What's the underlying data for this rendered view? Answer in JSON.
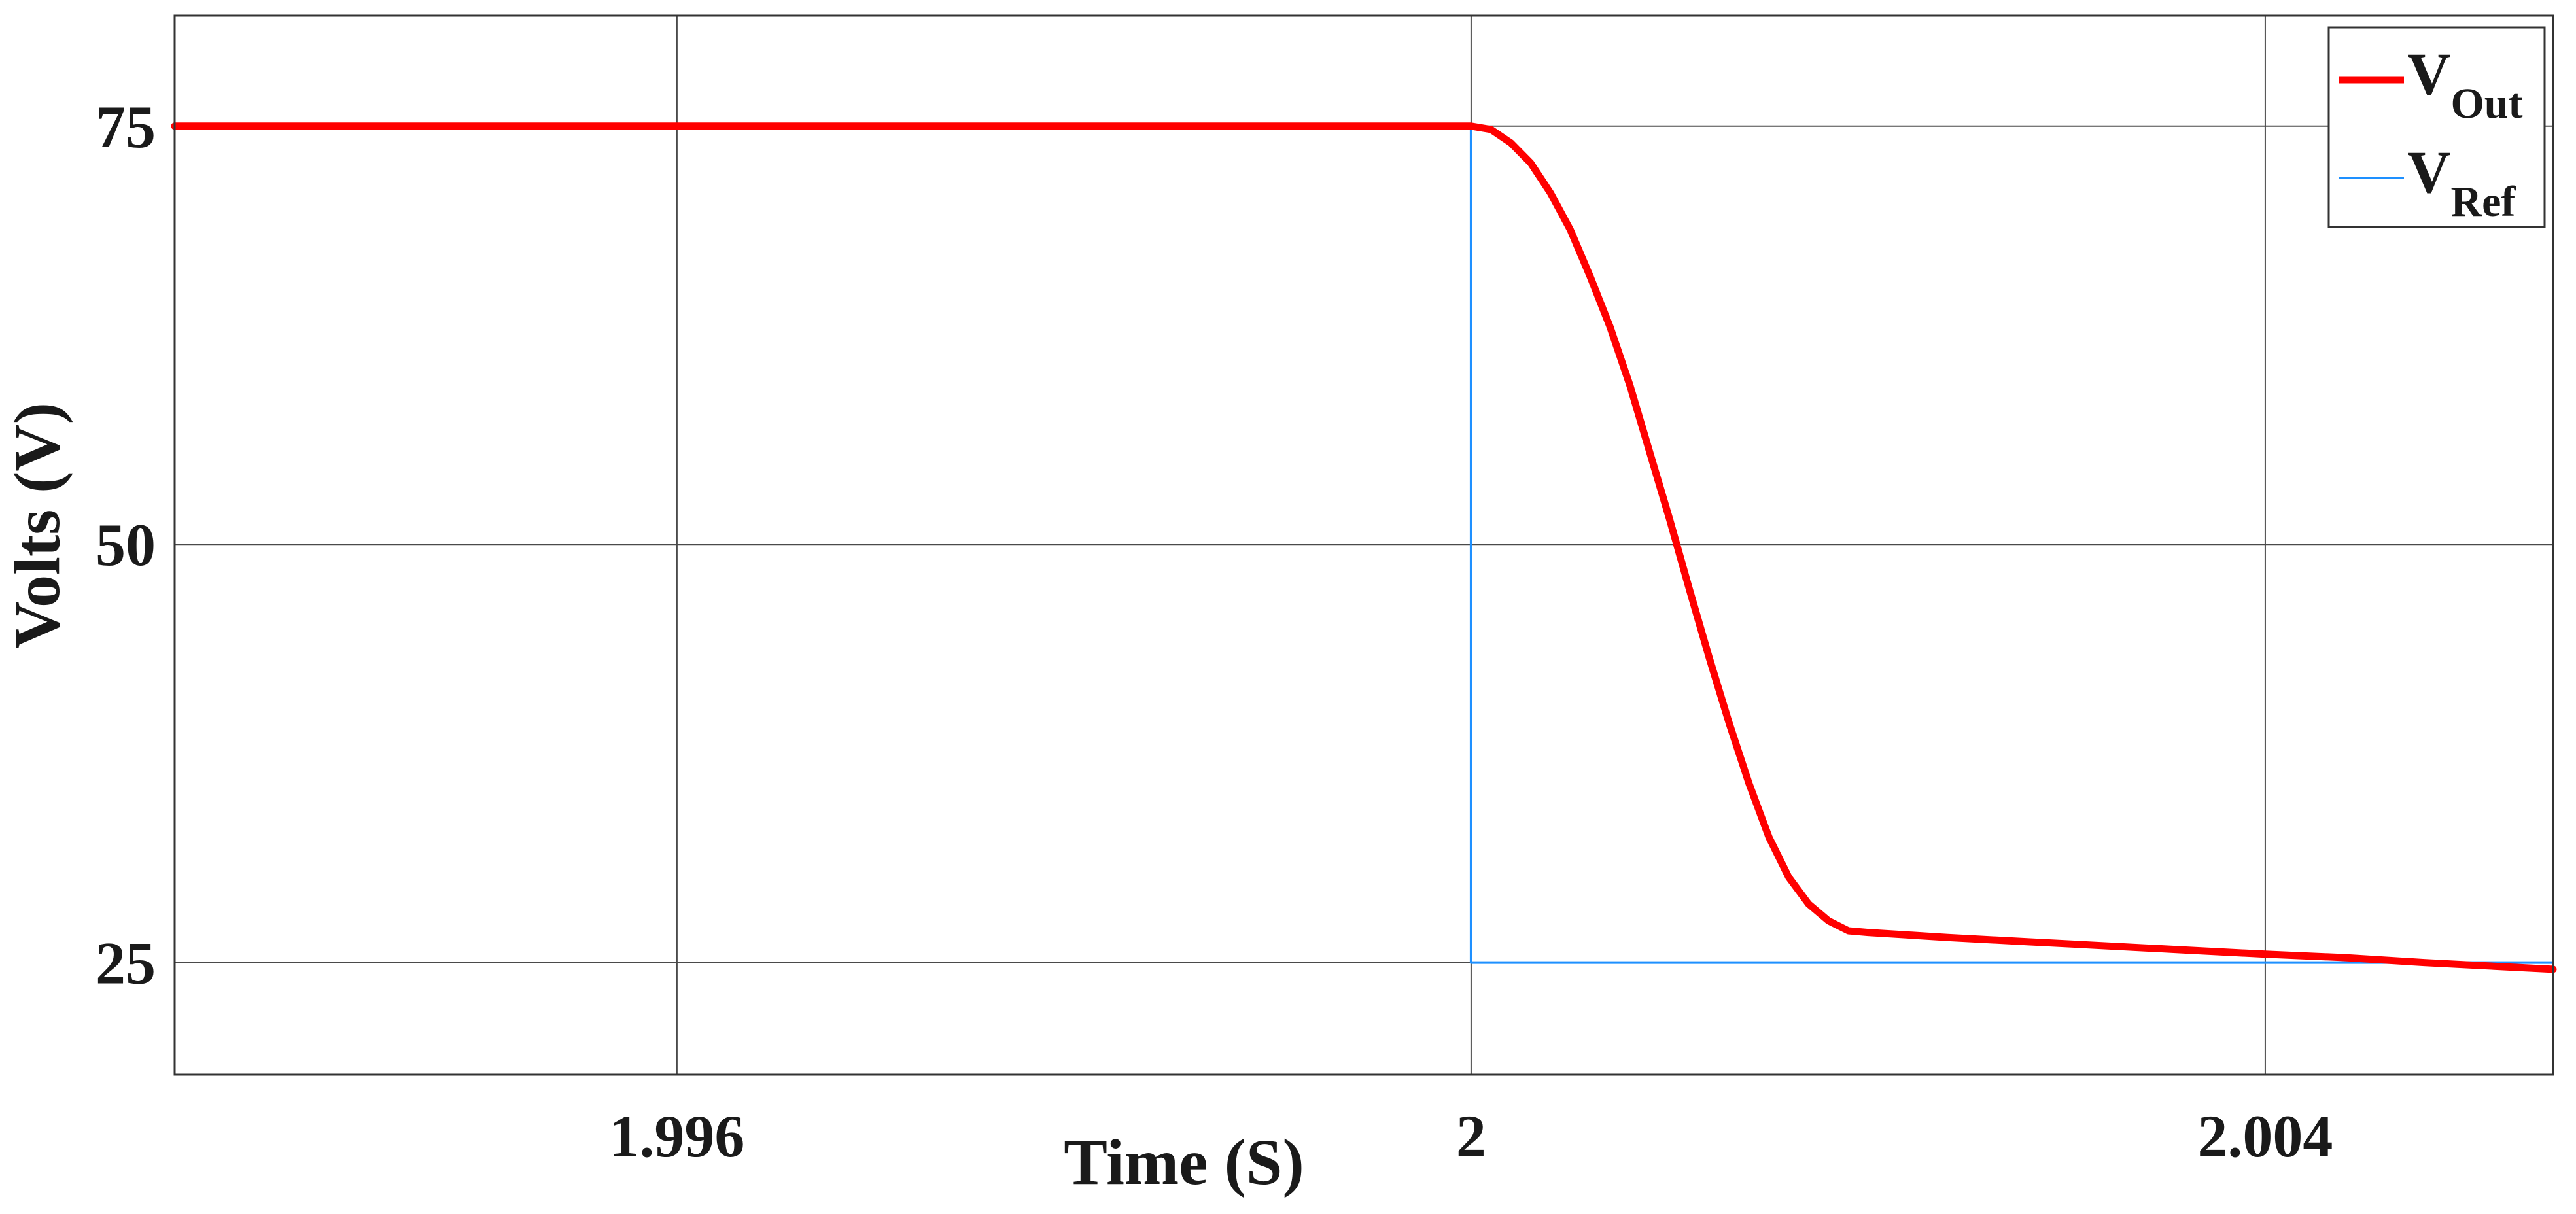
{
  "chart_data": {
    "type": "line",
    "title": "",
    "xlabel": "Time (S)",
    "ylabel": "Volts (V)",
    "xlim": [
      1.99347,
      2.00545
    ],
    "ylim": [
      18.3,
      81.6
    ],
    "xticks": [
      1.996,
      2,
      2.004
    ],
    "xtick_labels": [
      "1.996",
      "2",
      "2.004"
    ],
    "yticks": [
      25,
      50,
      75
    ],
    "ytick_labels": [
      "25",
      "50",
      "75"
    ],
    "grid": true,
    "legend_position": "top-right",
    "series": [
      {
        "name": "V_Out",
        "legend_main": "V",
        "legend_sub": "Out",
        "color": "#ff0000",
        "x": [
          1.99347,
          1.9995,
          2.0,
          2.0001,
          2.0002,
          2.0003,
          2.0004,
          2.0005,
          2.0006,
          2.0007,
          2.0008,
          2.0009,
          2.001,
          2.0011,
          2.0012,
          2.0013,
          2.0014,
          2.0015,
          2.0016,
          2.0017,
          2.0018,
          2.0019,
          2.002,
          2.0022,
          2.0024,
          2.0028,
          2.0032,
          2.0036,
          2.004,
          2.0044,
          2.0048,
          2.0052,
          2.00545
        ],
        "y": [
          75,
          75,
          75,
          74.8,
          74,
          72.8,
          71,
          68.8,
          66,
          63,
          59.5,
          55.5,
          51.5,
          47.3,
          43.2,
          39.3,
          35.7,
          32.5,
          30.1,
          28.5,
          27.5,
          26.9,
          26.8,
          26.65,
          26.5,
          26.25,
          26.0,
          25.75,
          25.5,
          25.3,
          25.0,
          24.75,
          24.6
        ]
      },
      {
        "name": "V_Ref",
        "legend_main": "V",
        "legend_sub": "Ref",
        "color": "#1e90ff",
        "x": [
          1.99347,
          2.0,
          2.0,
          2.00545
        ],
        "y": [
          75,
          75,
          25,
          25
        ]
      }
    ]
  }
}
